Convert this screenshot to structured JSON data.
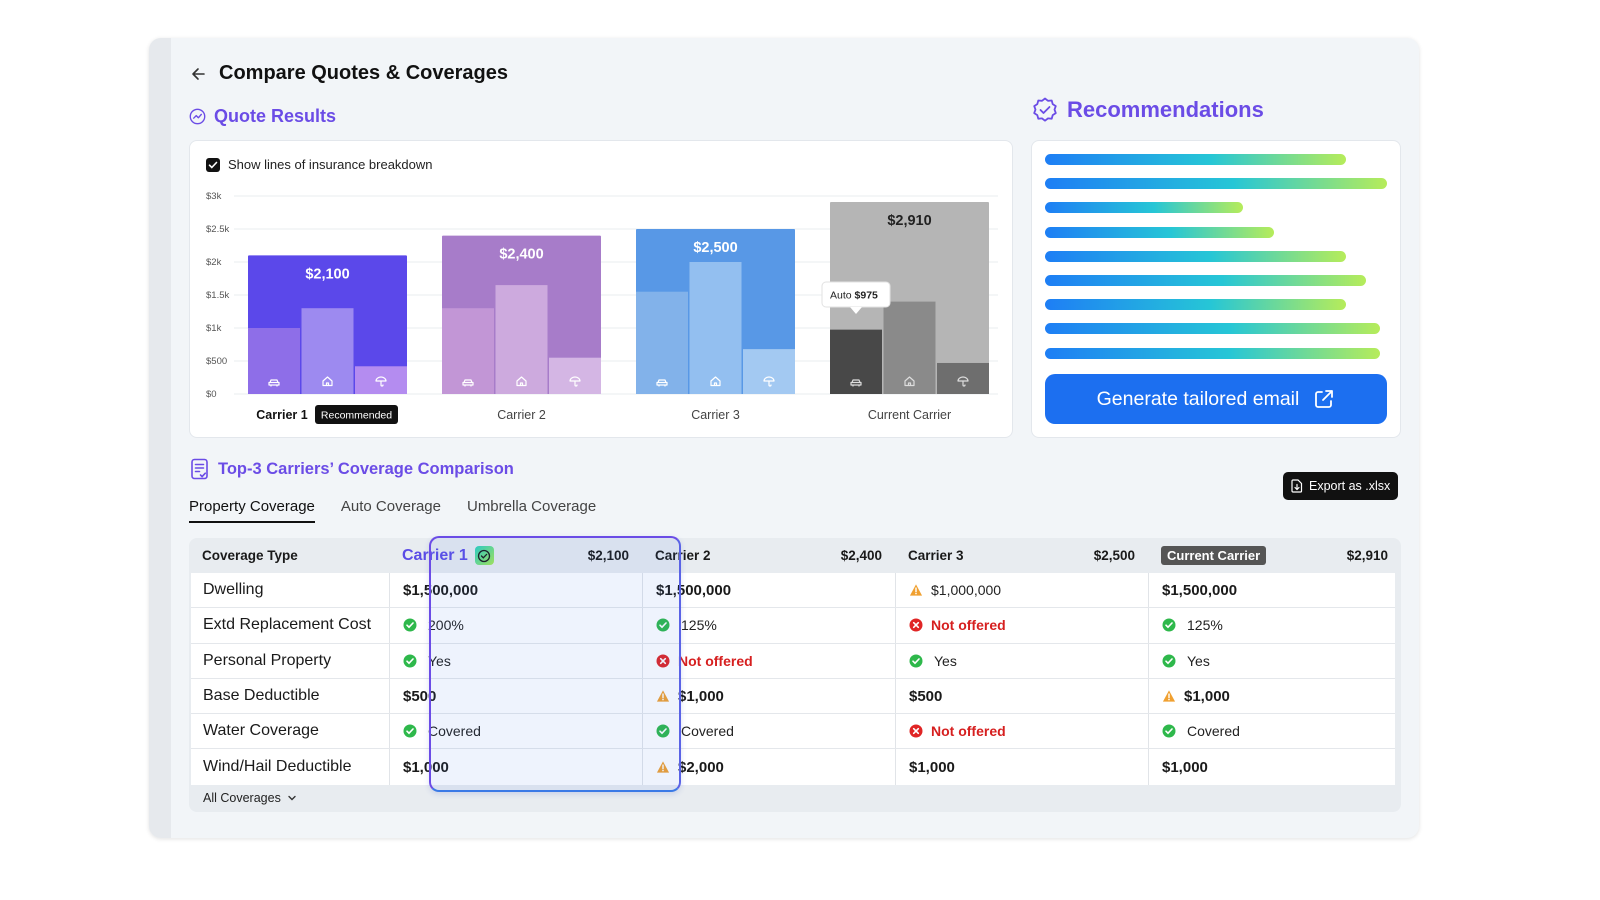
{
  "header": {
    "title": "Compare Quotes & Coverages"
  },
  "quote_results": {
    "title": "Quote Results",
    "checkbox_label": "Show lines of insurance breakdown",
    "checkbox_checked": true,
    "recommended_badge": "Recommended",
    "tooltip": {
      "label": "Auto",
      "value": "$975"
    }
  },
  "chart_data": {
    "type": "bar",
    "ylim": [
      0,
      3000
    ],
    "y_ticks": [
      "$0",
      "$500",
      "$1k",
      "$1.5k",
      "$2k",
      "$2.5k",
      "$3k"
    ],
    "categories": [
      "Carrier 1",
      "Carrier 2",
      "Carrier 3",
      "Current Carrier"
    ],
    "totals": [
      2100,
      2400,
      2500,
      2910
    ],
    "total_labels": [
      "$2,100",
      "$2,400",
      "$2,500",
      "$2,910"
    ],
    "series": [
      {
        "name": "Auto",
        "icon": "car-icon",
        "values": [
          1000,
          1300,
          1550,
          975
        ]
      },
      {
        "name": "Home",
        "icon": "home-icon",
        "values": [
          1300,
          1650,
          2000,
          1400
        ]
      },
      {
        "name": "Umbrella",
        "icon": "umbrella-icon",
        "values": [
          420,
          550,
          680,
          470
        ]
      }
    ],
    "colors": {
      "total": [
        "#5b48ea",
        "#a77cc9",
        "#5898e6",
        "#b5b5b5"
      ],
      "auto": [
        "#8e6ee8",
        "#c296d6",
        "#82b2ea",
        "#484848"
      ],
      "home": [
        "#9d8af0",
        "#cdaade",
        "#93bff0",
        "#8a8a8a"
      ],
      "umbrella": [
        "#b48cf0",
        "#d4b6e4",
        "#a3c9f2",
        "#6e6e6e"
      ]
    },
    "grid": true
  },
  "recommendations": {
    "title": "Recommendations",
    "line_lengths": [
      0.88,
      1.0,
      0.58,
      0.67,
      0.88,
      0.94,
      0.88,
      0.98,
      0.98
    ],
    "button_label": "Generate tailored email"
  },
  "coverage": {
    "title": "Top-3 Carriers’ Coverage Comparison",
    "export_label": "Export as .xlsx",
    "tabs": [
      "Property Coverage",
      "Auto Coverage",
      "Umbrella Coverage"
    ],
    "active_tab": 0,
    "header": {
      "type_label": "Coverage Type",
      "carriers": [
        {
          "name": "Carrier 1",
          "price": "$2,100"
        },
        {
          "name": "Carrier 2",
          "price": "$2,400"
        },
        {
          "name": "Carrier 3",
          "price": "$2,500"
        },
        {
          "name": "Current Carrier",
          "price": "$2,910"
        }
      ]
    },
    "rows": [
      {
        "label": "Dwelling",
        "cells": [
          {
            "text": "$1,500,000",
            "status": "bold"
          },
          {
            "text": "$1,500,000",
            "status": "bold"
          },
          {
            "text": "$1,000,000",
            "status": "warn"
          },
          {
            "text": "$1,500,000",
            "status": "bold"
          }
        ]
      },
      {
        "label": "Extd Replacement Cost",
        "cells": [
          {
            "text": "200%",
            "status": "ok"
          },
          {
            "text": "125%",
            "status": "ok"
          },
          {
            "text": "Not offered",
            "status": "no"
          },
          {
            "text": "125%",
            "status": "ok"
          }
        ]
      },
      {
        "label": "Personal Property",
        "cells": [
          {
            "text": "Yes",
            "status": "ok"
          },
          {
            "text": "Not offered",
            "status": "no"
          },
          {
            "text": "Yes",
            "status": "ok"
          },
          {
            "text": "Yes",
            "status": "ok"
          }
        ]
      },
      {
        "label": "Base Deductible",
        "cells": [
          {
            "text": "$500",
            "status": "bold"
          },
          {
            "text": "$1,000",
            "status": "warnbold"
          },
          {
            "text": "$500",
            "status": "bold"
          },
          {
            "text": "$1,000",
            "status": "warnbold"
          }
        ]
      },
      {
        "label": "Water Coverage",
        "cells": [
          {
            "text": "Covered",
            "status": "ok"
          },
          {
            "text": "Covered",
            "status": "ok"
          },
          {
            "text": "Not offered",
            "status": "no"
          },
          {
            "text": "Covered",
            "status": "ok"
          }
        ]
      },
      {
        "label": "Wind/Hail Deductible",
        "cells": [
          {
            "text": "$1,000",
            "status": "bold"
          },
          {
            "text": "$2,000",
            "status": "warnbold"
          },
          {
            "text": "$1,000",
            "status": "bold"
          },
          {
            "text": "$1,000",
            "status": "bold"
          }
        ]
      }
    ],
    "footer_label": "All Coverages"
  }
}
